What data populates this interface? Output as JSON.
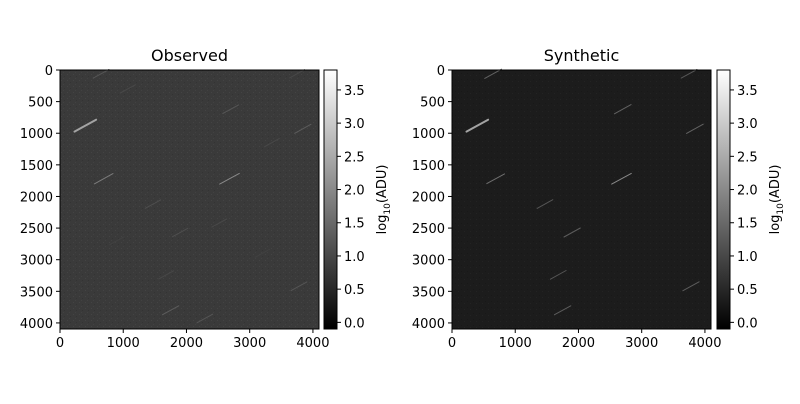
{
  "chart_data": [
    {
      "type": "heatmap",
      "title": "Observed",
      "x_ticks": [
        0,
        1000,
        2000,
        3000,
        4000
      ],
      "y_ticks": [
        0,
        500,
        1000,
        1500,
        2000,
        2500,
        3000,
        3500,
        4000
      ],
      "xlim": [
        0,
        4096
      ],
      "ylim": [
        4096,
        0
      ],
      "y_inverted": true,
      "background_level": 0.55,
      "colorbar": {
        "label": "log10(ADU)",
        "label_main": "log",
        "label_sub": "10",
        "label_unit": "(ADU)",
        "ticks": [
          "0.0",
          "0.5",
          "1.0",
          "1.5",
          "2.0",
          "2.5",
          "3.0",
          "3.5"
        ],
        "range": [
          -0.1,
          3.8
        ],
        "colormap": "gray"
      },
      "streaks": [
        {
          "x": 400,
          "y": 880,
          "level": 2.4
        },
        {
          "x": 650,
          "y": 60,
          "level": 1.2
        },
        {
          "x": 690,
          "y": 1720,
          "level": 1.8
        },
        {
          "x": 1070,
          "y": 300,
          "level": 1.0
        },
        {
          "x": 2680,
          "y": 1720,
          "level": 2.0
        },
        {
          "x": 2700,
          "y": 620,
          "level": 1.2
        },
        {
          "x": 1470,
          "y": 2120,
          "level": 1.1
        },
        {
          "x": 1750,
          "y": 3800,
          "level": 1.3
        },
        {
          "x": 3840,
          "y": 930,
          "level": 1.3
        },
        {
          "x": 3780,
          "y": 3420,
          "level": 1.2
        },
        {
          "x": 2290,
          "y": 3930,
          "level": 1.2
        },
        {
          "x": 1680,
          "y": 3240,
          "level": 1.0
        },
        {
          "x": 1900,
          "y": 2570,
          "level": 1.1
        },
        {
          "x": 2520,
          "y": 2420,
          "level": 1.0
        },
        {
          "x": 3750,
          "y": 60,
          "level": 1.0
        },
        {
          "x": 3350,
          "y": 1150,
          "level": 1.0
        },
        {
          "x": 900,
          "y": 2700,
          "level": 0.9
        },
        {
          "x": 3200,
          "y": 2900,
          "level": 0.9
        }
      ]
    },
    {
      "type": "heatmap",
      "title": "Synthetic",
      "x_ticks": [
        0,
        1000,
        2000,
        3000,
        4000
      ],
      "y_ticks": [
        0,
        500,
        1000,
        1500,
        2000,
        2500,
        3000,
        3500,
        4000
      ],
      "xlim": [
        0,
        4096
      ],
      "ylim": [
        4096,
        0
      ],
      "y_inverted": true,
      "background_level": 0.35,
      "colorbar": {
        "label": "log10(ADU)",
        "label_main": "log",
        "label_sub": "10",
        "label_unit": "(ADU)",
        "ticks": [
          "0.0",
          "0.5",
          "1.0",
          "1.5",
          "2.0",
          "2.5",
          "3.0",
          "3.5"
        ],
        "range": [
          -0.1,
          3.8
        ],
        "colormap": "gray"
      },
      "streaks": [
        {
          "x": 400,
          "y": 880,
          "level": 2.4
        },
        {
          "x": 650,
          "y": 60,
          "level": 1.4
        },
        {
          "x": 690,
          "y": 1720,
          "level": 1.6
        },
        {
          "x": 2680,
          "y": 1720,
          "level": 2.0
        },
        {
          "x": 2700,
          "y": 620,
          "level": 1.4
        },
        {
          "x": 3840,
          "y": 930,
          "level": 1.4
        },
        {
          "x": 1750,
          "y": 3800,
          "level": 1.3
        },
        {
          "x": 3780,
          "y": 3420,
          "level": 1.3
        },
        {
          "x": 1900,
          "y": 2570,
          "level": 1.3
        },
        {
          "x": 1680,
          "y": 3240,
          "level": 1.2
        },
        {
          "x": 3750,
          "y": 60,
          "level": 1.2
        },
        {
          "x": 1470,
          "y": 2120,
          "level": 1.2
        }
      ]
    }
  ]
}
